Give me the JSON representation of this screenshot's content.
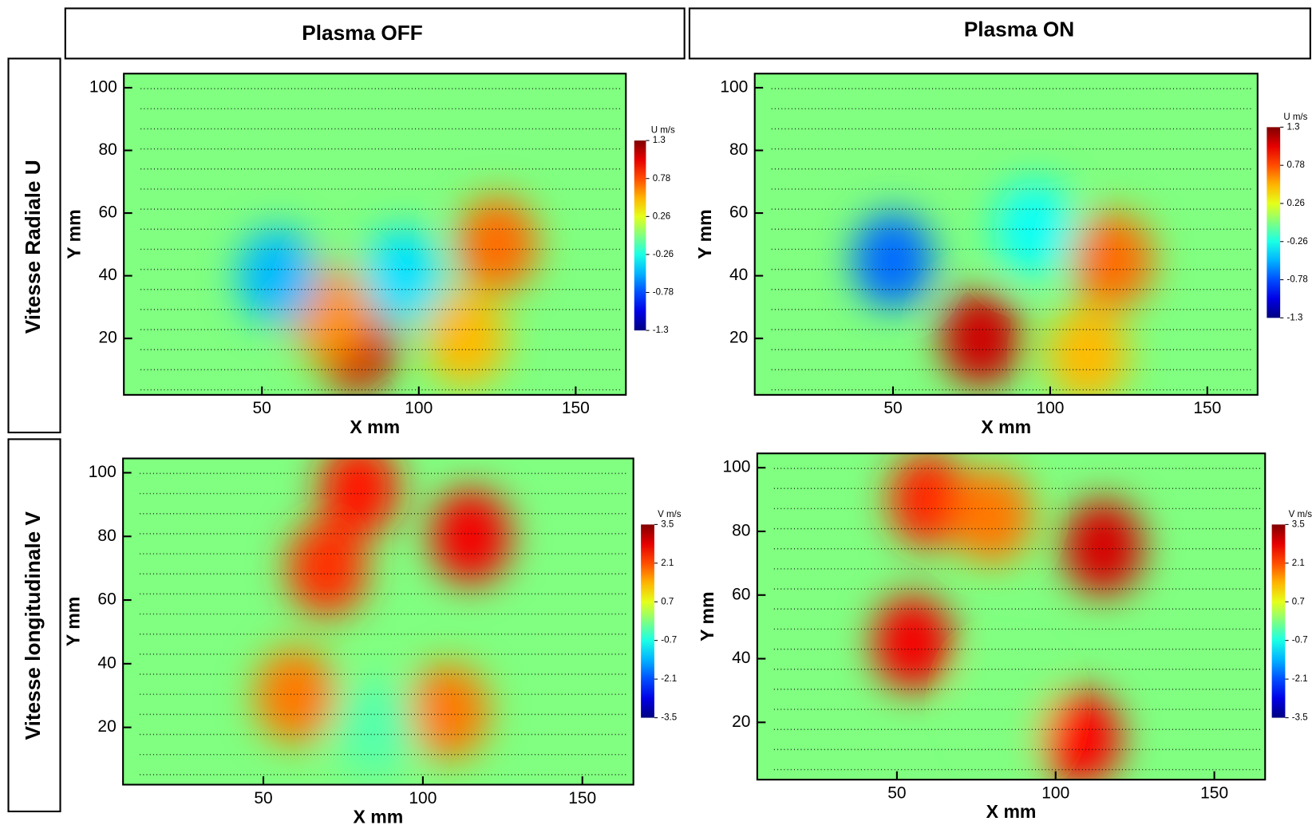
{
  "columns": [
    "Plasma OFF",
    "Plasma ON"
  ],
  "rows": [
    "Vitesse Radiale U",
    "Vitesse longitudinale V"
  ],
  "chart_data": [
    {
      "type": "contour",
      "xlabel": "X mm",
      "ylabel": "Y mm",
      "xlim": [
        6,
        166
      ],
      "ylim": [
        2,
        104.5
      ],
      "xticks": [
        50,
        100,
        150
      ],
      "yticks": [
        20,
        40,
        60,
        80,
        100
      ],
      "colorbar": {
        "title": "U m/s",
        "lim": [
          -1.3,
          1.3
        ],
        "ticks": [
          1.3,
          0.78,
          0.26,
          -0.26,
          -0.78,
          -1.3
        ]
      },
      "field": [
        [
          80,
          18,
          1.1
        ],
        [
          72,
          28,
          0.6
        ],
        [
          125,
          50,
          0.7
        ],
        [
          115,
          20,
          0.5
        ],
        [
          55,
          40,
          -0.5
        ],
        [
          95,
          40,
          -0.4
        ]
      ]
    },
    {
      "type": "contour",
      "xlabel": "X mm",
      "ylabel": "Y mm",
      "xlim": [
        6,
        166
      ],
      "ylim": [
        2,
        104.5
      ],
      "xticks": [
        50,
        100,
        150
      ],
      "yticks": [
        20,
        40,
        60,
        80,
        100
      ],
      "colorbar": {
        "title": "U m/s",
        "lim": [
          -1.3,
          1.3
        ],
        "ticks": [
          1.3,
          0.78,
          0.26,
          -0.26,
          -0.78,
          -1.3
        ]
      },
      "field": [
        [
          78,
          20,
          1.1
        ],
        [
          120,
          45,
          0.7
        ],
        [
          112,
          15,
          0.5
        ],
        [
          50,
          45,
          -0.7
        ],
        [
          95,
          55,
          -0.3
        ]
      ]
    },
    {
      "type": "contour",
      "xlabel": "X mm",
      "ylabel": "Y mm",
      "xlim": [
        6,
        166
      ],
      "ylim": [
        2,
        104.5
      ],
      "xticks": [
        50,
        100,
        150
      ],
      "yticks": [
        20,
        40,
        60,
        80,
        100
      ],
      "colorbar": {
        "title": "V m/s",
        "lim": [
          -3.5,
          3.5
        ],
        "ticks": [
          3.5,
          2.1,
          0.7,
          -0.7,
          -2.1,
          -3.5
        ]
      },
      "field": [
        [
          80,
          95,
          2.5
        ],
        [
          115,
          80,
          2.7
        ],
        [
          70,
          70,
          2.3
        ],
        [
          60,
          30,
          1.8
        ],
        [
          108,
          25,
          1.8
        ],
        [
          85,
          20,
          -0.3
        ]
      ]
    },
    {
      "type": "contour",
      "xlabel": "X mm",
      "ylabel": "Y mm",
      "xlim": [
        6,
        166
      ],
      "ylim": [
        2,
        104.5
      ],
      "xticks": [
        50,
        100,
        150
      ],
      "yticks": [
        20,
        40,
        60,
        80,
        100
      ],
      "colorbar": {
        "title": "V m/s",
        "lim": [
          -3.5,
          3.5
        ],
        "ticks": [
          3.5,
          2.1,
          0.7,
          -0.7,
          -2.1,
          -3.5
        ]
      },
      "field": [
        [
          55,
          45,
          2.7
        ],
        [
          115,
          75,
          2.9
        ],
        [
          60,
          90,
          2.4
        ],
        [
          108,
          15,
          2.6
        ],
        [
          80,
          85,
          1.8
        ],
        [
          85,
          25,
          0
        ]
      ]
    }
  ]
}
